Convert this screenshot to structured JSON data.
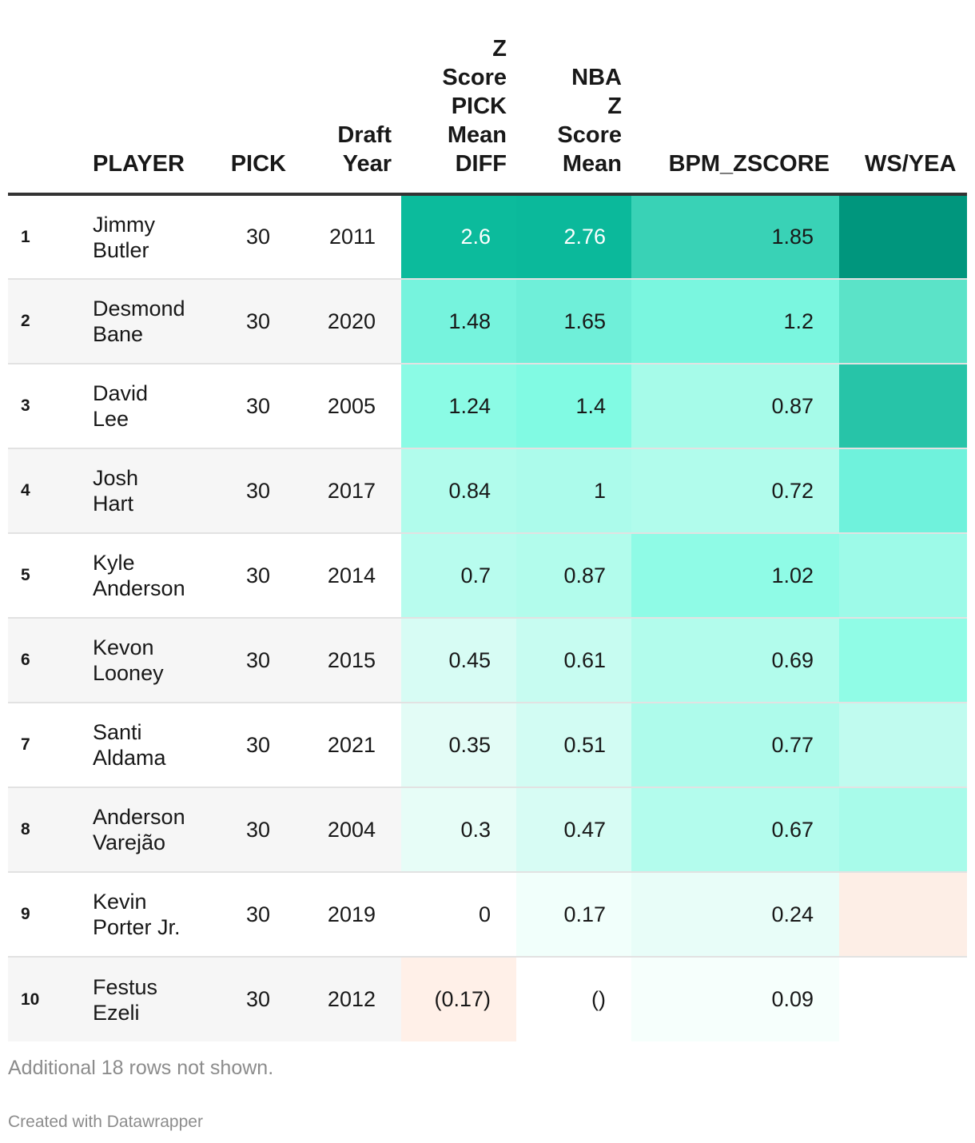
{
  "chart_data": {
    "type": "table",
    "columns": [
      {
        "key": "rank",
        "lines": [
          ""
        ]
      },
      {
        "key": "player",
        "lines": [
          "PLAYER"
        ]
      },
      {
        "key": "pick",
        "lines": [
          "PICK"
        ]
      },
      {
        "key": "year",
        "lines": [
          "Draft",
          "Year"
        ]
      },
      {
        "key": "zdiff",
        "lines": [
          "Z",
          "Score",
          "PICK",
          "Mean",
          "DIFF"
        ]
      },
      {
        "key": "nbaz",
        "lines": [
          "NBA",
          "Z",
          "Score",
          "Mean"
        ]
      },
      {
        "key": "bpm",
        "lines": [
          "BPM_ZSCORE"
        ]
      },
      {
        "key": "ws",
        "lines": [
          "WS/YEA"
        ]
      }
    ],
    "rows": [
      {
        "rank": "1",
        "first": "Jimmy",
        "last": "Butler",
        "pick": "30",
        "year": "2011",
        "zdiff": "2.6",
        "nbaz": "2.76",
        "bpm": "1.85",
        "zdiff_val": 2.6,
        "nbaz_val": 2.76,
        "bpm_val": 1.85,
        "ws_color": "#00967d"
      },
      {
        "rank": "2",
        "first": "Desmond",
        "last": "Bane",
        "pick": "30",
        "year": "2020",
        "zdiff": "1.48",
        "nbaz": "1.65",
        "bpm": "1.2",
        "zdiff_val": 1.48,
        "nbaz_val": 1.65,
        "bpm_val": 1.2,
        "ws_color": "#5be3c8"
      },
      {
        "rank": "3",
        "first": "David",
        "last": "Lee",
        "pick": "30",
        "year": "2005",
        "zdiff": "1.24",
        "nbaz": "1.4",
        "bpm": "0.87",
        "zdiff_val": 1.24,
        "nbaz_val": 1.4,
        "bpm_val": 0.87,
        "ws_color": "#27c4a8"
      },
      {
        "rank": "4",
        "first": "Josh",
        "last": "Hart",
        "pick": "30",
        "year": "2017",
        "zdiff": "0.84",
        "nbaz": "1",
        "bpm": "0.72",
        "zdiff_val": 0.84,
        "nbaz_val": 1.0,
        "bpm_val": 0.72,
        "ws_color": "#6ff2dc"
      },
      {
        "rank": "5",
        "first": "Kyle",
        "last": "Anderson",
        "pick": "30",
        "year": "2014",
        "zdiff": "0.7",
        "nbaz": "0.87",
        "bpm": "1.02",
        "zdiff_val": 0.7,
        "nbaz_val": 0.87,
        "bpm_val": 1.02,
        "ws_color": "#9dfae8"
      },
      {
        "rank": "6",
        "first": "Kevon",
        "last": "Looney",
        "pick": "30",
        "year": "2015",
        "zdiff": "0.45",
        "nbaz": "0.61",
        "bpm": "0.69",
        "zdiff_val": 0.45,
        "nbaz_val": 0.61,
        "bpm_val": 0.69,
        "ws_color": "#90fce6"
      },
      {
        "rank": "7",
        "first": "Santi",
        "last": "Aldama",
        "pick": "30",
        "year": "2021",
        "zdiff": "0.35",
        "nbaz": "0.51",
        "bpm": "0.77",
        "zdiff_val": 0.35,
        "nbaz_val": 0.51,
        "bpm_val": 0.77,
        "ws_color": "#c0fbef"
      },
      {
        "rank": "8",
        "first": "Anderson",
        "last": "Varejão",
        "pick": "30",
        "year": "2004",
        "zdiff": "0.3",
        "nbaz": "0.47",
        "bpm": "0.67",
        "zdiff_val": 0.3,
        "nbaz_val": 0.47,
        "bpm_val": 0.67,
        "ws_color": "#a8fbea"
      },
      {
        "rank": "9",
        "first": "Kevin",
        "last": "Porter Jr.",
        "pick": "30",
        "year": "2019",
        "zdiff": "0",
        "nbaz": "0.17",
        "bpm": "0.24",
        "zdiff_val": 0.0,
        "nbaz_val": 0.17,
        "bpm_val": 0.24,
        "ws_color": "#fdeee6"
      },
      {
        "rank": "10",
        "first": "Festus",
        "last": "Ezeli",
        "pick": "30",
        "year": "2012",
        "zdiff": "(0.17)",
        "nbaz": "()",
        "bpm": "0.09",
        "zdiff_val": -0.17,
        "nbaz_val": 0.0,
        "bpm_val": 0.09,
        "ws_color": "#ffffff"
      }
    ],
    "colors": {
      "text_dark": "#181818",
      "text_light": "#ffffff",
      "positive_strong": "#00967d",
      "positive_light": "#b5fcee",
      "negative_light": "#fff0e8"
    }
  },
  "footer": {
    "note": "Additional 18 rows not shown.",
    "credit": "Created with Datawrapper"
  }
}
